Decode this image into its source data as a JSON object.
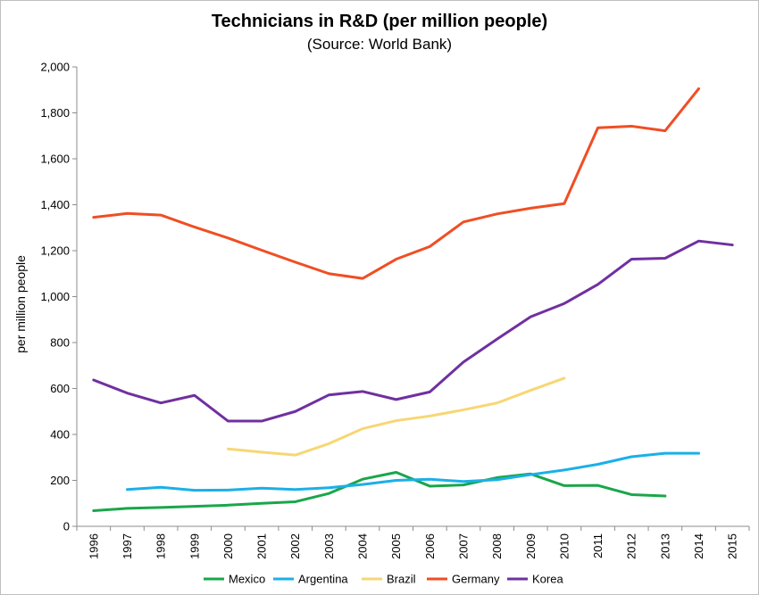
{
  "chart_data": {
    "type": "line",
    "title": "Technicians in R&D (per million people)",
    "subtitle": "(Source: World Bank)",
    "xlabel": "",
    "ylabel": "per million people",
    "categories": [
      "1996",
      "1997",
      "1998",
      "1999",
      "2000",
      "2001",
      "2002",
      "2003",
      "2004",
      "2005",
      "2006",
      "2007",
      "2008",
      "2009",
      "2010",
      "2011",
      "2012",
      "2013",
      "2014",
      "2015"
    ],
    "ylim": [
      0,
      2000
    ],
    "yticks": [
      0,
      200,
      400,
      600,
      800,
      1000,
      1200,
      1400,
      1600,
      1800,
      2000
    ],
    "ytick_labels": [
      "0",
      "200",
      "400",
      "600",
      "800",
      "1,000",
      "1,200",
      "1,400",
      "1,600",
      "1,800",
      "2,000"
    ],
    "grid": false,
    "legend_position": "bottom",
    "series": [
      {
        "name": "Mexico",
        "color": "#1aa64a",
        "values": [
          68,
          78,
          82,
          87,
          92,
          100,
          107,
          143,
          205,
          235,
          175,
          180,
          212,
          228,
          177,
          178,
          138,
          132,
          null,
          null
        ]
      },
      {
        "name": "Argentina",
        "color": "#1ab0e8",
        "values": [
          null,
          160,
          170,
          157,
          158,
          166,
          160,
          168,
          182,
          200,
          205,
          195,
          203,
          225,
          245,
          270,
          303,
          318,
          318,
          null
        ]
      },
      {
        "name": "Brazil",
        "color": "#f7d774",
        "values": [
          null,
          null,
          null,
          null,
          337,
          323,
          310,
          360,
          425,
          460,
          480,
          507,
          537,
          592,
          645,
          null,
          null,
          null,
          null,
          null
        ]
      },
      {
        "name": "Germany",
        "color": "#f04e23",
        "values": [
          1345,
          1362,
          1355,
          1303,
          1255,
          1202,
          1150,
          1100,
          1079,
          1163,
          1218,
          1325,
          1360,
          1385,
          1405,
          1735,
          1742,
          1722,
          1905,
          null
        ]
      },
      {
        "name": "Korea",
        "color": "#7030a0",
        "values": [
          637,
          580,
          537,
          570,
          458,
          458,
          500,
          572,
          587,
          552,
          585,
          715,
          815,
          912,
          970,
          1053,
          1163,
          1167,
          1242,
          1225
        ]
      }
    ]
  }
}
